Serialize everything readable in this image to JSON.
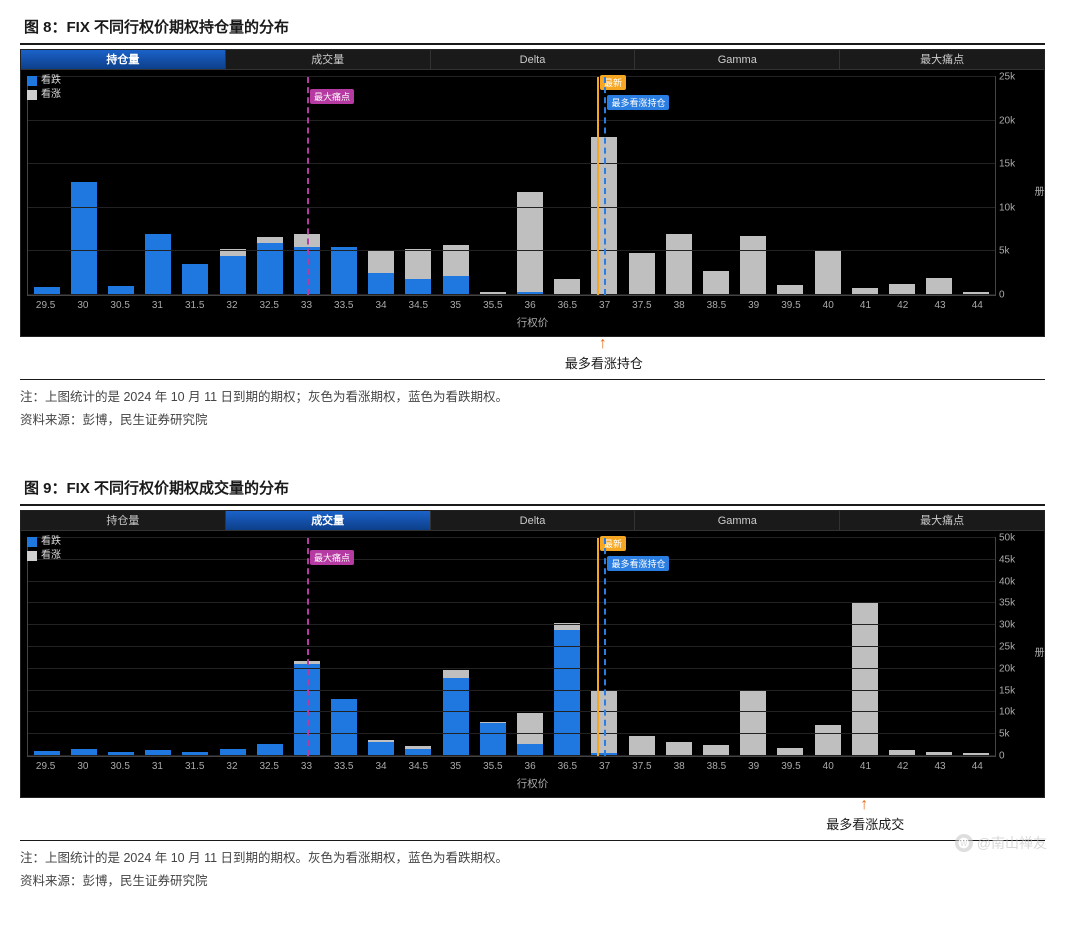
{
  "figure8": {
    "title": "图 8：FIX 不同行权价期权持仓量的分布",
    "tabs": [
      "持仓量",
      "成交量",
      "Delta",
      "Gamma",
      "最大痛点"
    ],
    "active_tab_index": 0,
    "legend": [
      {
        "label": "看跌",
        "color": "#1f77e0"
      },
      {
        "label": "看涨",
        "color": "#cfcfcf"
      }
    ],
    "series_colors": {
      "put": "#1f77e0",
      "call": "#bfbfbf"
    },
    "background_color": "#000000",
    "grid_color": "#222222",
    "categories": [
      "29.5",
      "30",
      "30.5",
      "31",
      "31.5",
      "32",
      "32.5",
      "33",
      "33.5",
      "34",
      "34.5",
      "35",
      "35.5",
      "36",
      "36.5",
      "37",
      "37.5",
      "38",
      "38.5",
      "39",
      "39.5",
      "40",
      "41",
      "42",
      "43",
      "44"
    ],
    "put_values": [
      900,
      13000,
      1000,
      7000,
      3500,
      4500,
      6000,
      5500,
      5500,
      2500,
      1800,
      2200,
      0,
      300,
      0,
      150,
      0,
      0,
      0,
      0,
      0,
      0,
      0,
      0,
      0,
      0
    ],
    "call_values": [
      0,
      0,
      0,
      0,
      0,
      800,
      700,
      1500,
      0,
      2500,
      3500,
      3500,
      400,
      11500,
      1800,
      18000,
      4800,
      7000,
      2800,
      6800,
      1200,
      5200,
      800,
      1300,
      2000,
      300
    ],
    "ymax": 25000,
    "ytick_step": 5000,
    "yticks": [
      "0",
      "5k",
      "10k",
      "15k",
      "20k",
      "25k"
    ],
    "xaxis_title": "行权价",
    "yaxis_title": "册",
    "marker_lines": [
      {
        "x": "33",
        "color": "#b53aa1",
        "style": "dashed",
        "label": "最大痛点",
        "label_bg": "#b53aa1",
        "label_top": 12
      },
      {
        "x": "36.9",
        "color": "#f5a623",
        "style": "solid",
        "label": "最新",
        "label_bg": "#f5a623",
        "label_top": -2
      },
      {
        "x": "37",
        "color": "#2a7de1",
        "style": "dashed",
        "label": "最多看涨持仓",
        "label_bg": "#2a7de1",
        "label_top": 18
      }
    ],
    "callout": {
      "x": "37",
      "text": "最多看涨持仓"
    },
    "note_line1": "注：上图统计的是 2024 年 10 月 11 日到期的期权；灰色为看涨期权，蓝色为看跌期权。",
    "note_line2": "资料来源：彭博，民生证券研究院"
  },
  "figure9": {
    "title": "图 9：FIX 不同行权价期权成交量的分布",
    "tabs": [
      "持仓量",
      "成交量",
      "Delta",
      "Gamma",
      "最大痛点"
    ],
    "active_tab_index": 1,
    "legend": [
      {
        "label": "看跌",
        "color": "#1f77e0"
      },
      {
        "label": "看涨",
        "color": "#cfcfcf"
      }
    ],
    "series_colors": {
      "put": "#1f77e0",
      "call": "#bfbfbf"
    },
    "background_color": "#000000",
    "grid_color": "#222222",
    "categories": [
      "29.5",
      "30",
      "30.5",
      "31",
      "31.5",
      "32",
      "32.5",
      "33",
      "33.5",
      "34",
      "34.5",
      "35",
      "35.5",
      "36",
      "36.5",
      "37",
      "37.5",
      "38",
      "38.5",
      "39",
      "39.5",
      "40",
      "41",
      "42",
      "43",
      "44"
    ],
    "put_values": [
      1200,
      1500,
      900,
      1300,
      1000,
      1500,
      2800,
      21000,
      13000,
      3200,
      1500,
      18000,
      7500,
      2800,
      29000,
      600,
      0,
      0,
      0,
      0,
      0,
      0,
      0,
      0,
      0,
      0
    ],
    "call_values": [
      0,
      0,
      0,
      0,
      0,
      0,
      0,
      800,
      0,
      500,
      700,
      1800,
      200,
      7000,
      1500,
      14500,
      4700,
      3200,
      2600,
      15000,
      1800,
      7000,
      35000,
      1400,
      1000,
      800
    ],
    "ymax": 50000,
    "ytick_step": 5000,
    "yticks": [
      "0",
      "5k",
      "10k",
      "15k",
      "20k",
      "25k",
      "30k",
      "35k",
      "40k",
      "45k",
      "50k"
    ],
    "xaxis_title": "行权价",
    "yaxis_title": "册",
    "marker_lines": [
      {
        "x": "33",
        "color": "#b53aa1",
        "style": "dashed",
        "label": "最大痛点",
        "label_bg": "#b53aa1",
        "label_top": 12
      },
      {
        "x": "36.9",
        "color": "#f5a623",
        "style": "solid",
        "label": "最新",
        "label_bg": "#f5a623",
        "label_top": -2
      },
      {
        "x": "37",
        "color": "#2a7de1",
        "style": "dashed",
        "label": "最多看涨持仓",
        "label_bg": "#2a7de1",
        "label_top": 18
      }
    ],
    "callout": {
      "x": "41",
      "text": "最多看涨成交"
    },
    "note_line1": "注：上图统计的是 2024 年 10 月 11 日到期的期权。灰色为看涨期权，蓝色为看跌期权。",
    "note_line2": "资料来源：彭博，民生证券研究院"
  },
  "watermark": "@南山禅友"
}
